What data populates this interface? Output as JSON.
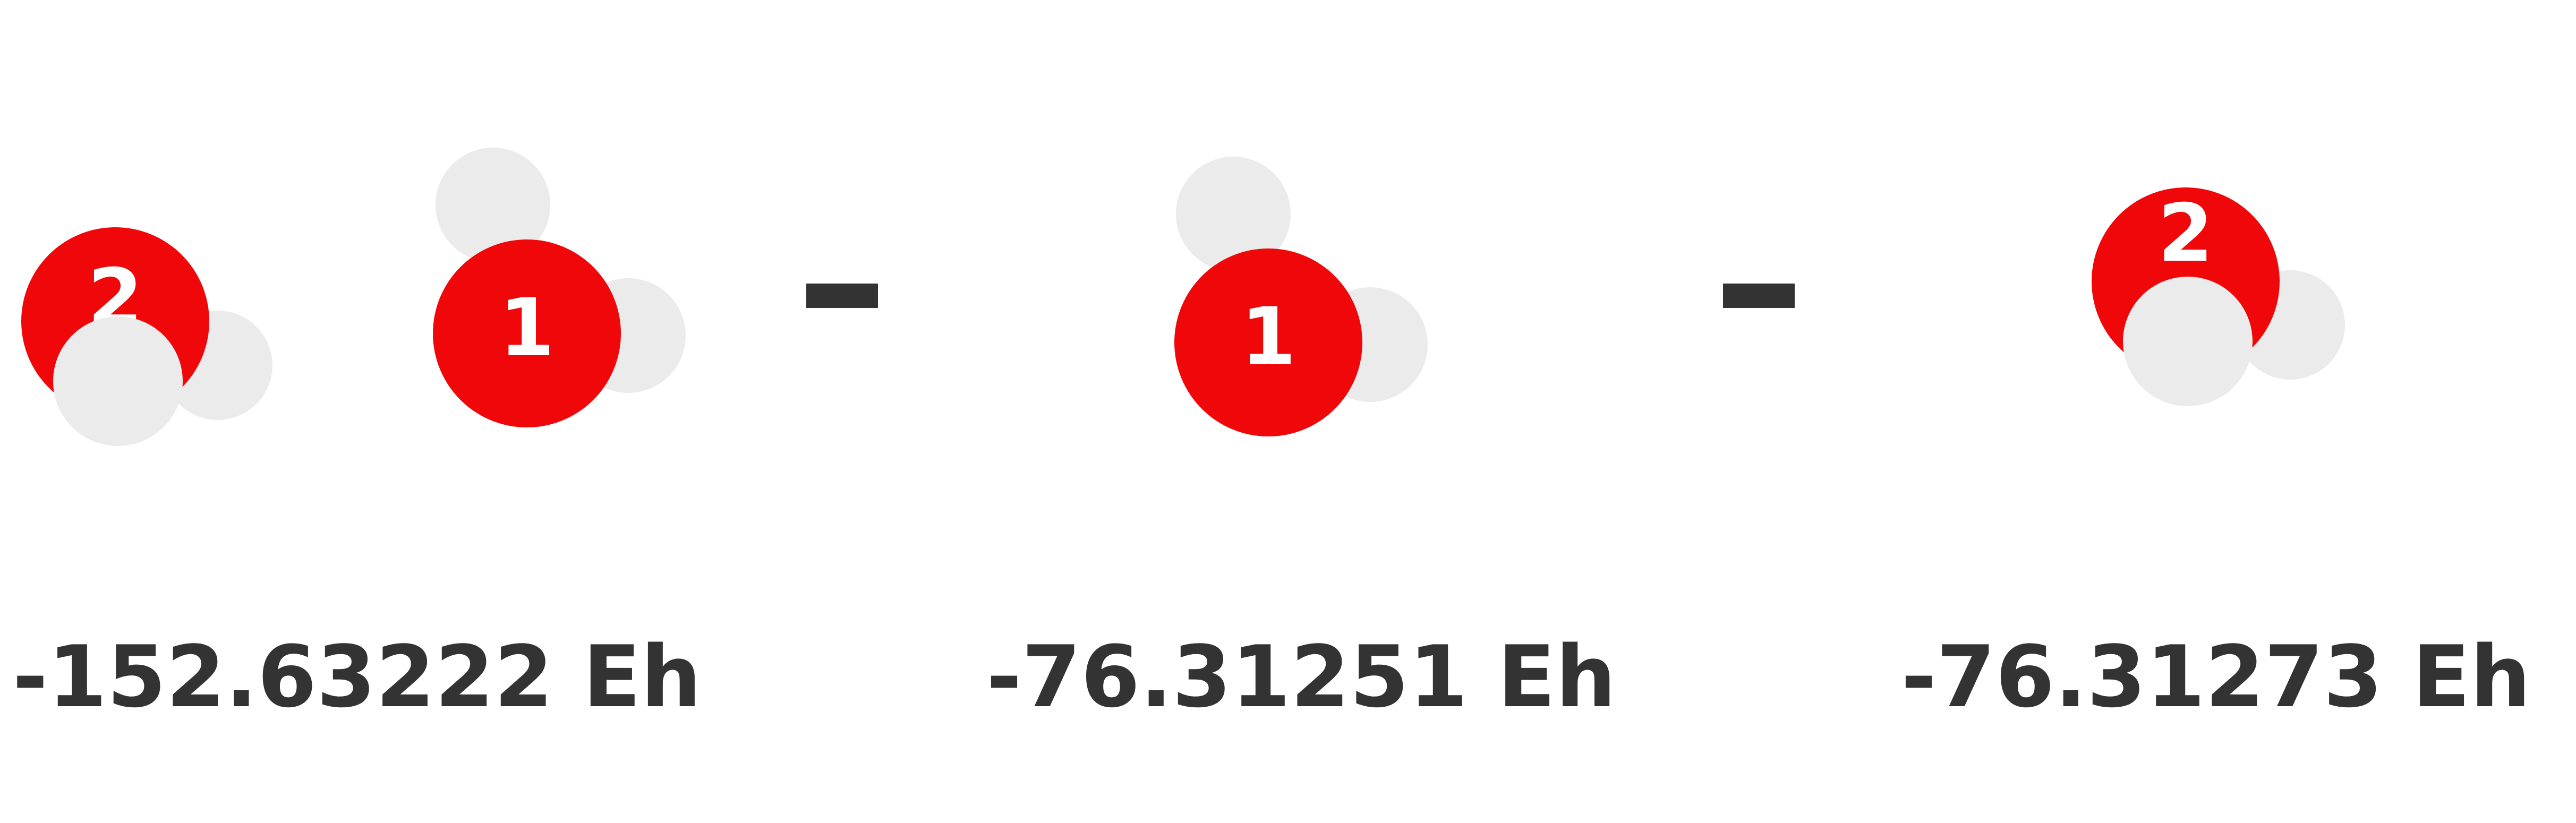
{
  "colors": {
    "oxygen": "#f00709",
    "hydrogen": "#ebebeb",
    "text": "#333333",
    "operator": "#333333",
    "label": "#ffffff"
  },
  "molecules": {
    "dimer": {
      "oxygen_labels": [
        "2",
        "1"
      ],
      "energy": "-152.63222 Eh"
    },
    "monomer_1": {
      "oxygen_label": "1",
      "energy": "-76.31251 Eh"
    },
    "monomer_2": {
      "oxygen_label": "2",
      "energy": "-76.31273 Eh"
    }
  },
  "operators": [
    "minus",
    "minus"
  ]
}
